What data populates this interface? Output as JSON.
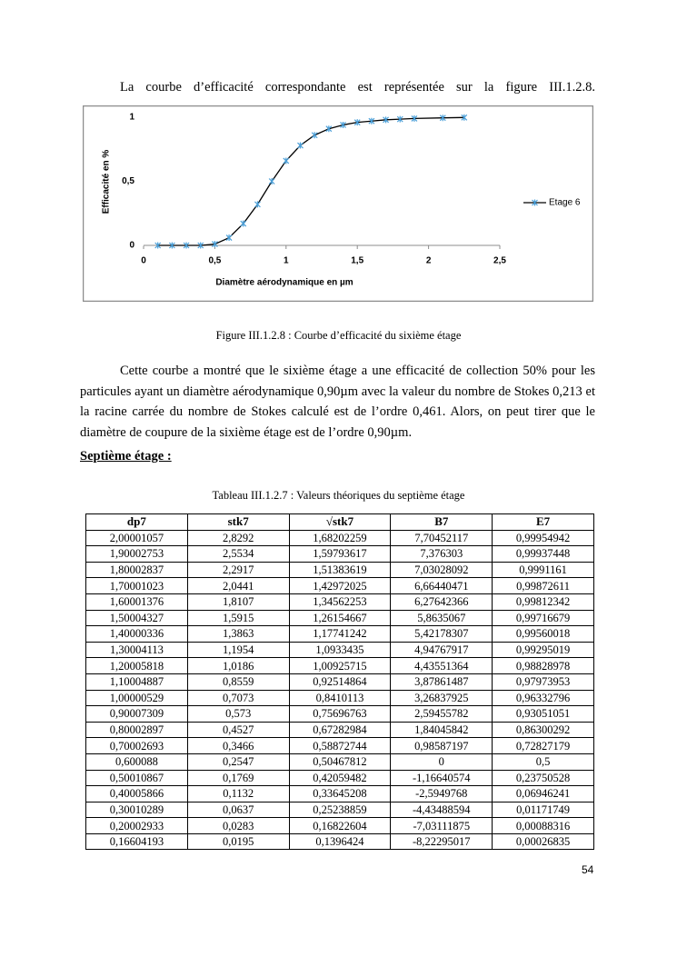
{
  "intro": "La courbe d’efficacité correspondante est représentée sur la figure III.1.2.8.",
  "chart_data": {
    "type": "line",
    "xlabel": "Diamètre aérodynamique en µm",
    "ylabel": "Efficacité en %",
    "x": [
      0.1,
      0.2,
      0.3,
      0.4,
      0.5,
      0.6,
      0.7,
      0.8,
      0.9,
      1.0,
      1.1,
      1.2,
      1.3,
      1.4,
      1.5,
      1.6,
      1.7,
      1.8,
      1.9,
      2.1,
      2.25
    ],
    "series": [
      {
        "name": "Etage 6",
        "color": "#000000",
        "marker_color": "#4a9fd8",
        "values": [
          0,
          0,
          0,
          0,
          0.01,
          0.06,
          0.17,
          0.32,
          0.5,
          0.66,
          0.78,
          0.86,
          0.91,
          0.94,
          0.96,
          0.97,
          0.98,
          0.985,
          0.99,
          0.995,
          0.998
        ]
      }
    ],
    "xlim": [
      0,
      2.5
    ],
    "ylim": [
      0,
      1
    ],
    "xticks": [
      0,
      {
        "value": 0.5,
        "label": "0,5"
      },
      1,
      {
        "value": 1.5,
        "label": "1,5"
      },
      2,
      {
        "value": 2.5,
        "label": "2,5"
      }
    ],
    "yticks": [
      0,
      {
        "value": 0.5,
        "label": "0,5"
      },
      1
    ],
    "legend": "right"
  },
  "figure_caption": "Figure III.1.2.8 : Courbe d’efficacité du sixième étage",
  "paragraph": "Cette courbe a montré que le sixième étage a une efficacité de collection 50% pour les particules ayant un diamètre aérodynamique 0,90µm avec la valeur du nombre de Stokes 0,213 et la racine carrée du nombre de Stokes calculé est de l’ordre 0,461. Alors, on peut tirer que le diamètre de coupure de la sixième étage est de l’ordre 0,90µm.",
  "heading": "Septième étage :",
  "table": {
    "caption": "Tableau III.1.2.7 : Valeurs théoriques du septième étage",
    "header": [
      "dp7",
      "stk7",
      "√stk7",
      "B7",
      "E7"
    ],
    "rows": [
      [
        "2,00001057",
        "2,8292",
        "1,68202259",
        "7,70452117",
        "0,99954942"
      ],
      [
        "1,90002753",
        "2,5534",
        "1,59793617",
        "7,376303",
        "0,99937448"
      ],
      [
        "1,80002837",
        "2,2917",
        "1,51383619",
        "7,03028092",
        "0,9991161"
      ],
      [
        "1,70001023",
        "2,0441",
        "1,42972025",
        "6,66440471",
        "0,99872611"
      ],
      [
        "1,60001376",
        "1,8107",
        "1,34562253",
        "6,27642366",
        "0,99812342"
      ],
      [
        "1,50004327",
        "1,5915",
        "1,26154667",
        "5,8635067",
        "0,99716679"
      ],
      [
        "1,40000336",
        "1,3863",
        "1,17741242",
        "5,42178307",
        "0,99560018"
      ],
      [
        "1,30004113",
        "1,1954",
        "1,0933435",
        "4,94767917",
        "0,99295019"
      ],
      [
        "1,20005818",
        "1,0186",
        "1,00925715",
        "4,43551364",
        "0,98828978"
      ],
      [
        "1,10004887",
        "0,8559",
        "0,92514864",
        "3,87861487",
        "0,97973953"
      ],
      [
        "1,00000529",
        "0,7073",
        "0,8410113",
        "3,26837925",
        "0,96332796"
      ],
      [
        "0,90007309",
        "0,573",
        "0,75696763",
        "2,59455782",
        "0,93051051"
      ],
      [
        "0,80002897",
        "0,4527",
        "0,67282984",
        "1,84045842",
        "0,86300292"
      ],
      [
        "0,70002693",
        "0,3466",
        "0,58872744",
        "0,98587197",
        "0,72827179"
      ],
      [
        "0,600088",
        "0,2547",
        "0,50467812",
        "0",
        "0,5"
      ],
      [
        "0,50010867",
        "0,1769",
        "0,42059482",
        "-1,16640574",
        "0,23750528"
      ],
      [
        "0,40005866",
        "0,1132",
        "0,33645208",
        "-2,5949768",
        "0,06946241"
      ],
      [
        "0,30010289",
        "0,0637",
        "0,25238859",
        "-4,43488594",
        "0,01171749"
      ],
      [
        "0,20002933",
        "0,0283",
        "0,16822604",
        "-7,03111875",
        "0,00088316"
      ],
      [
        "0,16604193",
        "0,0195",
        "0,1396424",
        "-8,22295017",
        "0,00026835"
      ]
    ]
  },
  "page_number": "54"
}
